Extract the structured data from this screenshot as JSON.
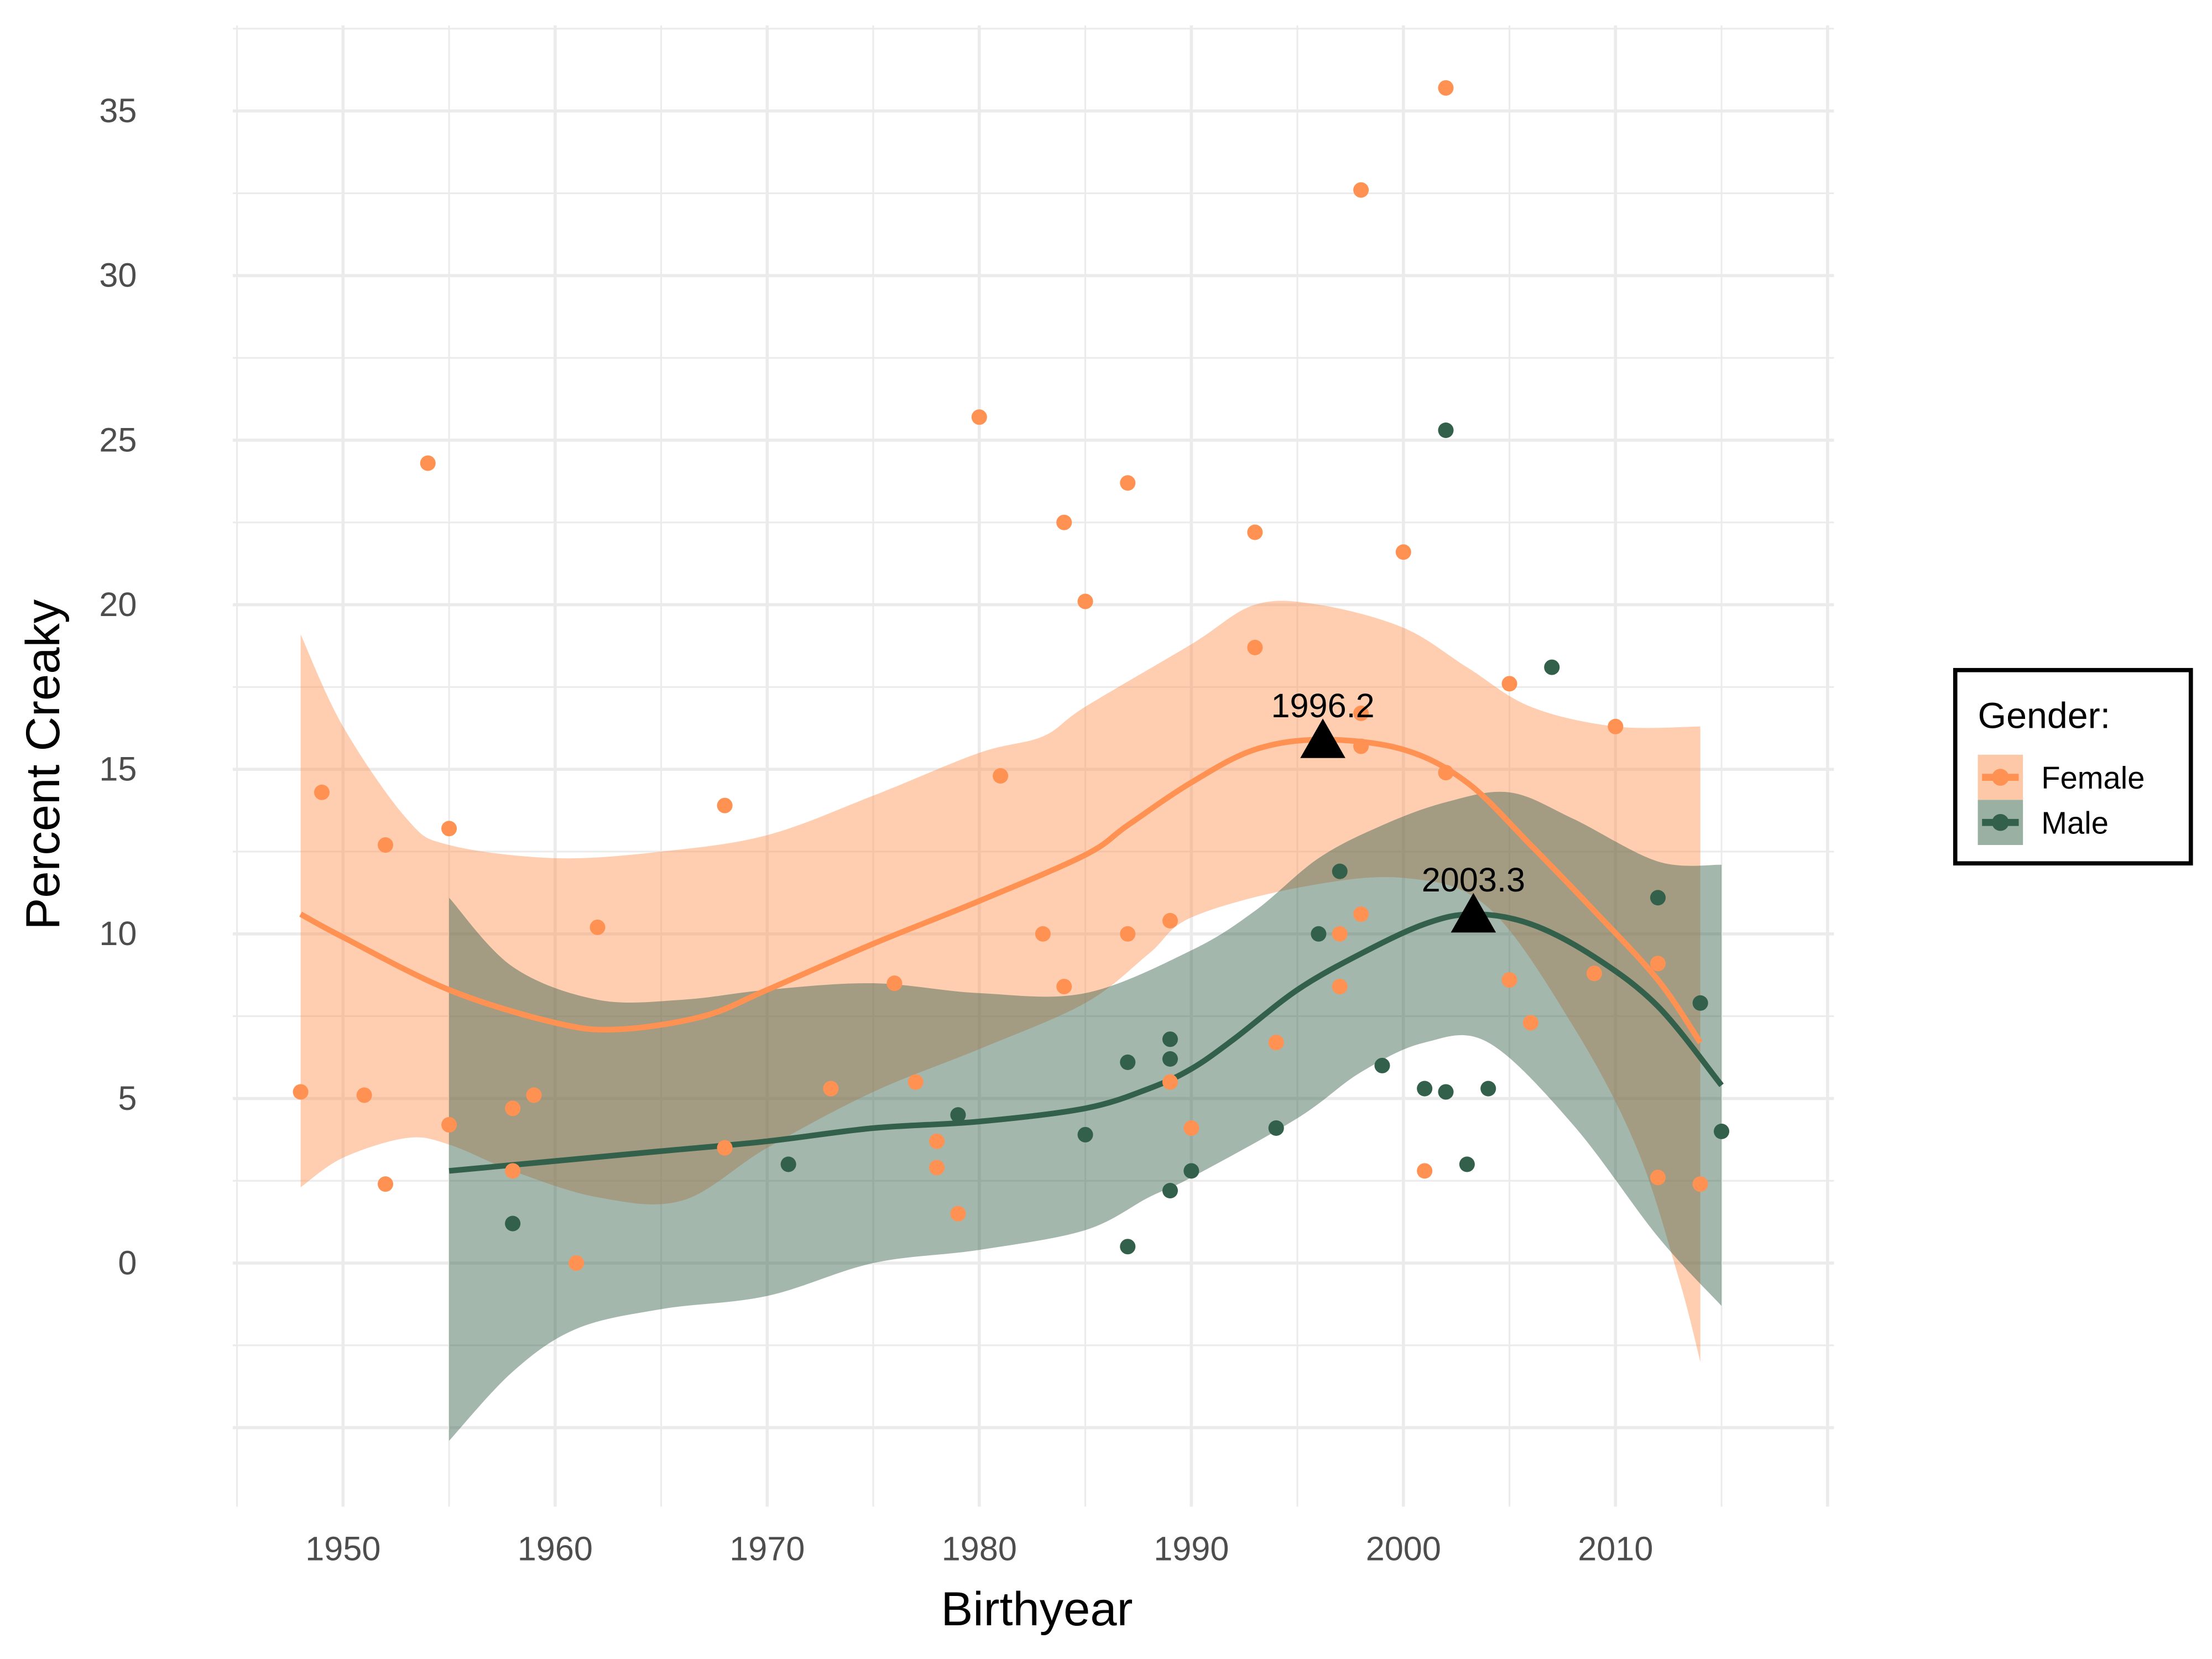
{
  "chart_data": {
    "type": "scatter",
    "title": "",
    "xlabel": "Birthyear",
    "ylabel": "Percent Creaky",
    "xlim": [
      1944.8,
      2020.3
    ],
    "ylim": [
      -7.4,
      37.6
    ],
    "x_ticks": [
      "1950",
      "1960",
      "1970",
      "1980",
      "1990",
      "2000",
      "2010"
    ],
    "y_ticks": [
      "0",
      "5",
      "10",
      "15",
      "20",
      "25",
      "30",
      "35"
    ],
    "grid": true,
    "legend": {
      "title": "Gender:",
      "placement": "right",
      "entries": [
        "Female",
        "Male"
      ]
    },
    "colors": {
      "Female": "#FF9252",
      "Male": "#33604A",
      "Female_band": "#FDC8A8",
      "Male_band": "#9AB0A2"
    },
    "series": [
      {
        "name": "Female",
        "points": [
          [
            1948,
            5.2
          ],
          [
            1949,
            14.3
          ],
          [
            1951,
            5.1
          ],
          [
            1952,
            12.7
          ],
          [
            1952,
            2.4
          ],
          [
            1954,
            24.3
          ],
          [
            1955,
            13.2
          ],
          [
            1955,
            4.2
          ],
          [
            1958,
            4.7
          ],
          [
            1958,
            2.8
          ],
          [
            1959,
            5.1
          ],
          [
            1961,
            0.0
          ],
          [
            1962,
            10.2
          ],
          [
            1968,
            13.9
          ],
          [
            1968,
            3.5
          ],
          [
            1973,
            5.3
          ],
          [
            1976,
            8.5
          ],
          [
            1977,
            5.5
          ],
          [
            1978,
            3.7
          ],
          [
            1978,
            2.9
          ],
          [
            1979,
            1.5
          ],
          [
            1980,
            25.7
          ],
          [
            1981,
            14.8
          ],
          [
            1983,
            10.0
          ],
          [
            1984,
            22.5
          ],
          [
            1984,
            8.4
          ],
          [
            1985,
            20.1
          ],
          [
            1987,
            23.7
          ],
          [
            1987,
            10.0
          ],
          [
            1989,
            10.4
          ],
          [
            1989,
            5.5
          ],
          [
            1990,
            4.1
          ],
          [
            1993,
            22.2
          ],
          [
            1993,
            18.7
          ],
          [
            1994,
            6.7
          ],
          [
            1997,
            10.0
          ],
          [
            1997,
            8.4
          ],
          [
            1998,
            32.6
          ],
          [
            1998,
            16.7
          ],
          [
            1998,
            15.7
          ],
          [
            1998,
            10.6
          ],
          [
            2000,
            21.6
          ],
          [
            2001,
            2.8
          ],
          [
            2002,
            35.7
          ],
          [
            2002,
            14.9
          ],
          [
            2005,
            17.6
          ],
          [
            2005,
            8.6
          ],
          [
            2006,
            7.3
          ],
          [
            2009,
            8.8
          ],
          [
            2010,
            16.3
          ],
          [
            2012,
            9.1
          ],
          [
            2012,
            2.6
          ],
          [
            2014,
            2.4
          ]
        ],
        "smooth": [
          [
            1948,
            10.6
          ],
          [
            1950,
            9.9
          ],
          [
            1955,
            8.3
          ],
          [
            1960,
            7.3
          ],
          [
            1963,
            7.1
          ],
          [
            1967,
            7.5
          ],
          [
            1970,
            8.3
          ],
          [
            1975,
            9.7
          ],
          [
            1980,
            11.0
          ],
          [
            1985,
            12.4
          ],
          [
            1987,
            13.3
          ],
          [
            1990,
            14.6
          ],
          [
            1993,
            15.6
          ],
          [
            1996.2,
            15.9
          ],
          [
            2000,
            15.6
          ],
          [
            2003,
            14.6
          ],
          [
            2006,
            12.7
          ],
          [
            2009,
            10.7
          ],
          [
            2012,
            8.6
          ],
          [
            2014,
            6.7
          ]
        ],
        "band_upper": [
          [
            1948,
            19.1
          ],
          [
            1950,
            16.3
          ],
          [
            1953,
            13.5
          ],
          [
            1955,
            12.7
          ],
          [
            1960,
            12.3
          ],
          [
            1965,
            12.5
          ],
          [
            1970,
            13.0
          ],
          [
            1975,
            14.2
          ],
          [
            1980,
            15.5
          ],
          [
            1983,
            16.0
          ],
          [
            1985,
            16.9
          ],
          [
            1990,
            18.8
          ],
          [
            1993,
            20.0
          ],
          [
            1996,
            20.0
          ],
          [
            2000,
            19.3
          ],
          [
            2003,
            18.1
          ],
          [
            2006,
            16.9
          ],
          [
            2010,
            16.3
          ],
          [
            2014,
            16.3
          ]
        ],
        "band_lower": [
          [
            1948,
            2.3
          ],
          [
            1950,
            3.2
          ],
          [
            1953,
            3.8
          ],
          [
            1955,
            3.6
          ],
          [
            1958,
            2.8
          ],
          [
            1962,
            2.0
          ],
          [
            1966,
            1.9
          ],
          [
            1970,
            3.5
          ],
          [
            1975,
            5.2
          ],
          [
            1980,
            6.5
          ],
          [
            1985,
            7.9
          ],
          [
            1988,
            9.4
          ],
          [
            1990,
            10.5
          ],
          [
            1995,
            11.4
          ],
          [
            2000,
            11.7
          ],
          [
            2004,
            10.8
          ],
          [
            2008,
            7.2
          ],
          [
            2011,
            3.5
          ],
          [
            2013,
            -0.5
          ],
          [
            2014,
            -3.0
          ]
        ],
        "peak": {
          "x": 1996.2,
          "y": 15.9,
          "label": "1996.2"
        }
      },
      {
        "name": "Male",
        "points": [
          [
            1958,
            1.2
          ],
          [
            1971,
            3.0
          ],
          [
            1979,
            4.5
          ],
          [
            1985,
            3.9
          ],
          [
            1987,
            6.1
          ],
          [
            1987,
            0.5
          ],
          [
            1989,
            6.8
          ],
          [
            1989,
            6.2
          ],
          [
            1989,
            2.2
          ],
          [
            1990,
            2.8
          ],
          [
            1994,
            4.1
          ],
          [
            1996,
            10.0
          ],
          [
            1997,
            11.9
          ],
          [
            1999,
            6.0
          ],
          [
            2001,
            5.3
          ],
          [
            2002,
            5.2
          ],
          [
            2002,
            25.3
          ],
          [
            2003,
            3.0
          ],
          [
            2004,
            5.3
          ],
          [
            2007,
            18.1
          ],
          [
            2012,
            11.1
          ],
          [
            2014,
            7.9
          ],
          [
            2015,
            4.0
          ]
        ],
        "smooth": [
          [
            1955,
            2.8
          ],
          [
            1960,
            3.1
          ],
          [
            1965,
            3.4
          ],
          [
            1970,
            3.7
          ],
          [
            1975,
            4.1
          ],
          [
            1980,
            4.3
          ],
          [
            1985,
            4.7
          ],
          [
            1988,
            5.3
          ],
          [
            1990,
            5.9
          ],
          [
            1992,
            6.8
          ],
          [
            1995,
            8.3
          ],
          [
            1998,
            9.4
          ],
          [
            2001,
            10.3
          ],
          [
            2003.3,
            10.6
          ],
          [
            2006,
            10.3
          ],
          [
            2009,
            9.3
          ],
          [
            2012,
            7.8
          ],
          [
            2015,
            5.4
          ]
        ],
        "band_upper": [
          [
            1955,
            11.1
          ],
          [
            1958,
            9.0
          ],
          [
            1962,
            8.0
          ],
          [
            1966,
            8.0
          ],
          [
            1970,
            8.3
          ],
          [
            1975,
            8.5
          ],
          [
            1980,
            8.2
          ],
          [
            1985,
            8.2
          ],
          [
            1990,
            9.5
          ],
          [
            1993,
            10.7
          ],
          [
            1996,
            12.3
          ],
          [
            1999,
            13.3
          ],
          [
            2002,
            14.0
          ],
          [
            2005,
            14.3
          ],
          [
            2008,
            13.5
          ],
          [
            2012,
            12.2
          ],
          [
            2015,
            12.1
          ]
        ],
        "band_lower": [
          [
            1955,
            -5.4
          ],
          [
            1958,
            -3.3
          ],
          [
            1961,
            -2.0
          ],
          [
            1965,
            -1.4
          ],
          [
            1970,
            -1.0
          ],
          [
            1975,
            0.0
          ],
          [
            1980,
            0.4
          ],
          [
            1985,
            1.0
          ],
          [
            1988,
            2.0
          ],
          [
            1990,
            2.6
          ],
          [
            1995,
            4.4
          ],
          [
            1998,
            5.8
          ],
          [
            2001,
            6.7
          ],
          [
            2004,
            6.7
          ],
          [
            2008,
            4.2
          ],
          [
            2012,
            0.8
          ],
          [
            2015,
            -1.3
          ]
        ],
        "peak": {
          "x": 2003.3,
          "y": 10.6,
          "label": "2003.3"
        }
      }
    ]
  }
}
